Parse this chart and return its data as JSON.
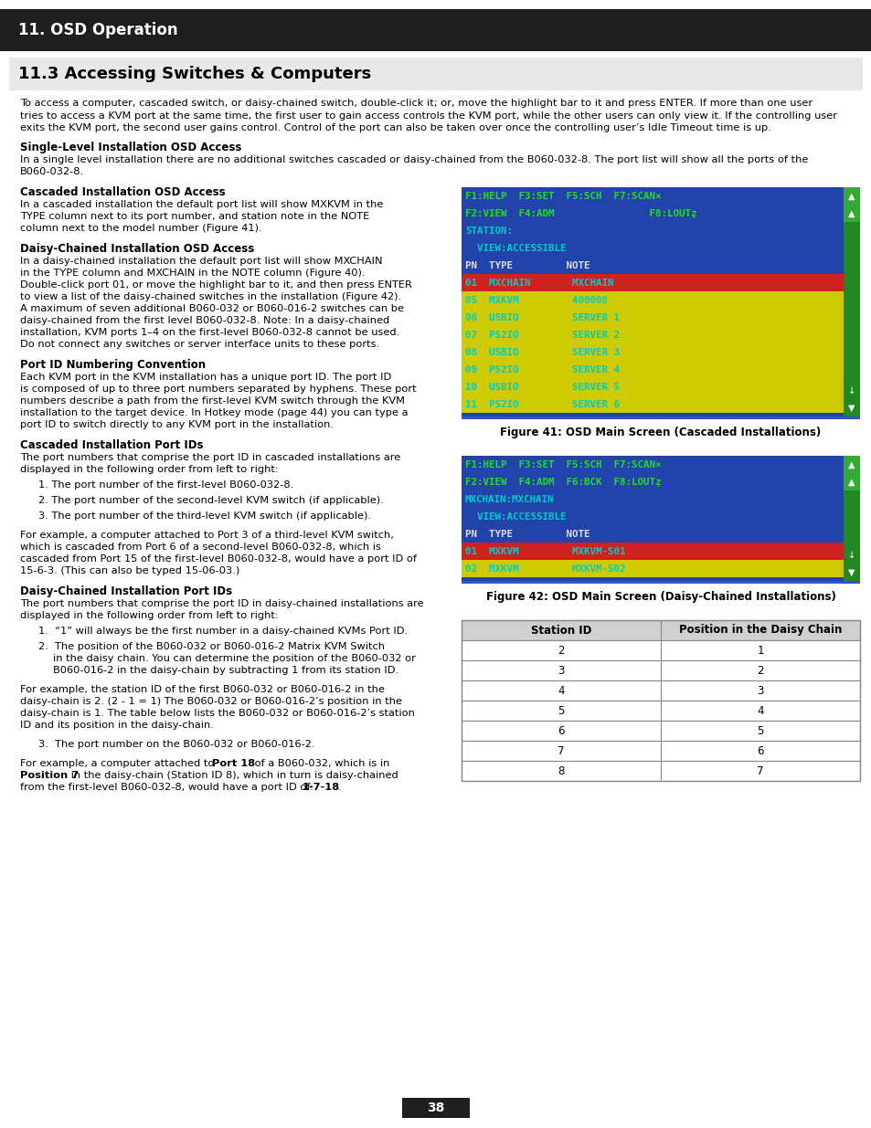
{
  "page_bg": "#ffffff",
  "header_bg": "#1e1e1e",
  "header_text": "11. OSD Operation",
  "header_text_color": "#ffffff",
  "section_title": "11.3 Accessing Switches & Computers",
  "body_text_color": "#000000",
  "page_number": "38",
  "osd1_lines": [
    {
      "text": "F1:HELP  F3:SET  F5:SCH  F7:SCAN×",
      "color": "#22dd22",
      "bg": "#2244aa"
    },
    {
      "text": "F2:VIEW  F4:ADM                F8:LOUTẓ",
      "color": "#22dd22",
      "bg": "#2244aa"
    },
    {
      "text": "STATION:",
      "color": "#00cccc",
      "bg": "#2244aa"
    },
    {
      "text": "  VIEW:ACCESSIBLE",
      "color": "#00cccc",
      "bg": "#2244aa"
    },
    {
      "text": "PN  TYPE         NOTE",
      "color": "#dddddd",
      "bg": "#2244aa"
    },
    {
      "text": "01  MXCHAIN       MXCHAIN",
      "color": "#00cccc",
      "bg": "#cc2222"
    },
    {
      "text": "05  MXKVM         400000",
      "color": "#00cccc",
      "bg": "#cccc00"
    },
    {
      "text": "06  USBIO         SERVER 1",
      "color": "#00cccc",
      "bg": "#cccc00"
    },
    {
      "text": "07  PS2IO         SERVER 2",
      "color": "#00cccc",
      "bg": "#cccc00"
    },
    {
      "text": "08  USBIO         SERVER 3",
      "color": "#00cccc",
      "bg": "#cccc00"
    },
    {
      "text": "09  PS2IO         SERVER 4",
      "color": "#00cccc",
      "bg": "#cccc00"
    },
    {
      "text": "10  USBIO         SERVER 5",
      "color": "#00cccc",
      "bg": "#cccc00"
    },
    {
      "text": "11  PS2IO         SERVER 6",
      "color": "#00cccc",
      "bg": "#cccc00"
    }
  ],
  "fig41_caption": "Figure 41: OSD Main Screen (Cascaded Installations)",
  "osd2_lines": [
    {
      "text": "F1:HELP  F3:SET  F5:SCH  F7:SCAN×",
      "color": "#22dd22",
      "bg": "#2244aa"
    },
    {
      "text": "F2:VIEW  F4:ADM  F6:BCK  F8:LOUTẓ",
      "color": "#22dd22",
      "bg": "#2244aa"
    },
    {
      "text": "MXCHAIN:MXCHAIN",
      "color": "#00cccc",
      "bg": "#2244aa"
    },
    {
      "text": "  VIEW:ACCESSIBLE",
      "color": "#00cccc",
      "bg": "#2244aa"
    },
    {
      "text": "PN  TYPE         NOTE",
      "color": "#dddddd",
      "bg": "#2244aa"
    },
    {
      "text": "01  MXKVM         MXKVM-S01",
      "color": "#00cccc",
      "bg": "#cc2222"
    },
    {
      "text": "02  MXKVM         MXKVM-S02",
      "color": "#00cccc",
      "bg": "#cccc00"
    }
  ],
  "fig42_caption": "Figure 42: OSD Main Screen (Daisy-Chained Installations)",
  "table_header": [
    "Station ID",
    "Position in the Daisy Chain"
  ],
  "table_data": [
    [
      "2",
      "1"
    ],
    [
      "3",
      "2"
    ],
    [
      "4",
      "3"
    ],
    [
      "5",
      "4"
    ],
    [
      "6",
      "5"
    ],
    [
      "7",
      "6"
    ],
    [
      "8",
      "7"
    ]
  ]
}
